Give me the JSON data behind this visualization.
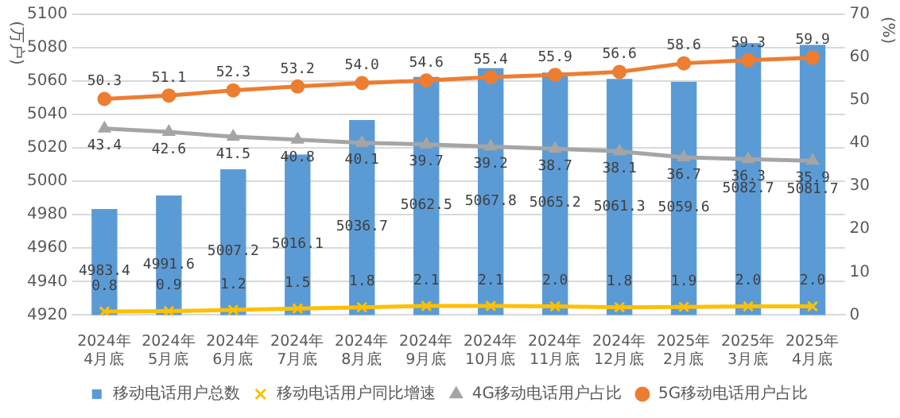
{
  "chart_data": {
    "type": "bar",
    "ylabel": "(万户)",
    "y2label": "(%)",
    "categories": [
      "2024年\n4月底",
      "2024年\n5月底",
      "2024年\n6月底",
      "2024年\n7月底",
      "2024年\n8月底",
      "2024年\n9月底",
      "2024年\n10月底",
      "2024年\n11月底",
      "2024年\n12月底",
      "2025年\n2月底",
      "2025年\n3月底",
      "2025年\n4月底"
    ],
    "series": [
      {
        "name": "移动电话用户总数",
        "color": "#5b9bd5",
        "values": [
          4983.4,
          4991.6,
          5007.2,
          5016.1,
          5036.7,
          5062.5,
          5067.8,
          5065.2,
          5061.3,
          5059.6,
          5082.7,
          5081.7
        ],
        "value_labels": [
          "4983.4",
          "4991.6",
          "5007.2",
          "5016.1",
          "5036.7",
          "5062.5",
          "5067.8",
          "5065.2",
          "5061.3",
          "5059.6",
          "5082.7",
          "5081.7"
        ]
      },
      {
        "name": "移动电话用户同比增速",
        "type": "line",
        "axis": "y2",
        "marker": "cross",
        "color": "#ffc000",
        "values": [
          0.8,
          0.9,
          1.2,
          1.5,
          1.8,
          2.1,
          2.1,
          2.0,
          1.8,
          1.9,
          2.0,
          2.0
        ],
        "value_labels": [
          "0.8",
          "0.9",
          "1.2",
          "1.5",
          "1.8",
          "2.1",
          "2.1",
          "2.0",
          "1.8",
          "1.9",
          "2.0",
          "2.0"
        ]
      },
      {
        "name": "4G移动电话用户占比",
        "type": "line",
        "axis": "y2",
        "marker": "triangle",
        "color": "#a5a5a5",
        "values": [
          43.4,
          42.6,
          41.5,
          40.8,
          40.1,
          39.7,
          39.2,
          38.7,
          38.1,
          36.7,
          36.3,
          35.9
        ],
        "value_labels": [
          "43.4",
          "42.6",
          "41.5",
          "40.8",
          "40.1",
          "39.7",
          "39.2",
          "38.7",
          "38.1",
          "36.7",
          "36.3",
          "35.9"
        ]
      },
      {
        "name": "5G移动电话用户占比",
        "type": "line",
        "axis": "y2",
        "marker": "circle",
        "color": "#ed7d31",
        "values": [
          50.3,
          51.1,
          52.3,
          53.2,
          54.0,
          54.6,
          55.4,
          55.9,
          56.6,
          58.6,
          59.3,
          59.9
        ],
        "value_labels": [
          "50.3",
          "51.1",
          "52.3",
          "53.2",
          "54.0",
          "54.6",
          "55.4",
          "55.9",
          "56.6",
          "58.6",
          "59.3",
          "59.9"
        ]
      }
    ],
    "ylim": [
      4920,
      5100
    ],
    "yticks": [
      4920,
      4940,
      4960,
      4980,
      5000,
      5020,
      5040,
      5060,
      5080,
      5100
    ],
    "y2lim": [
      0,
      70
    ],
    "y2ticks": [
      0,
      10,
      20,
      30,
      40,
      50,
      60,
      70
    ],
    "grid": "y",
    "legend": "bottom"
  }
}
